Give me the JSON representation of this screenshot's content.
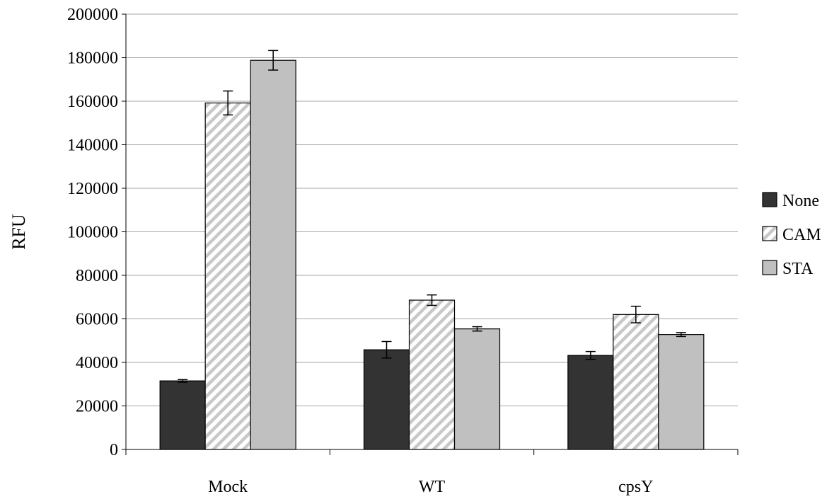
{
  "chart_data": {
    "type": "bar",
    "title": "",
    "xlabel": "",
    "ylabel": "RFU",
    "ylim": [
      0,
      200000
    ],
    "yticks": [
      0,
      20000,
      40000,
      60000,
      80000,
      100000,
      120000,
      140000,
      160000,
      180000,
      200000
    ],
    "categories": [
      "Mock",
      "WT",
      "cpsY"
    ],
    "grid": true,
    "legend_position": "right",
    "series": [
      {
        "name": "None",
        "color": "#333333",
        "pattern": "solid",
        "values": [
          31500,
          45800,
          43200
        ],
        "errors": [
          600,
          3800,
          1800
        ]
      },
      {
        "name": "CAM",
        "color": "#ffffff",
        "pattern": "diagonal-hatch",
        "values": [
          159200,
          68600,
          62000
        ],
        "errors": [
          5500,
          2400,
          3800
        ]
      },
      {
        "name": "STA",
        "color": "#c0c0c0",
        "pattern": "solid",
        "values": [
          178800,
          55400,
          52800
        ],
        "errors": [
          4500,
          1000,
          900
        ]
      }
    ]
  }
}
